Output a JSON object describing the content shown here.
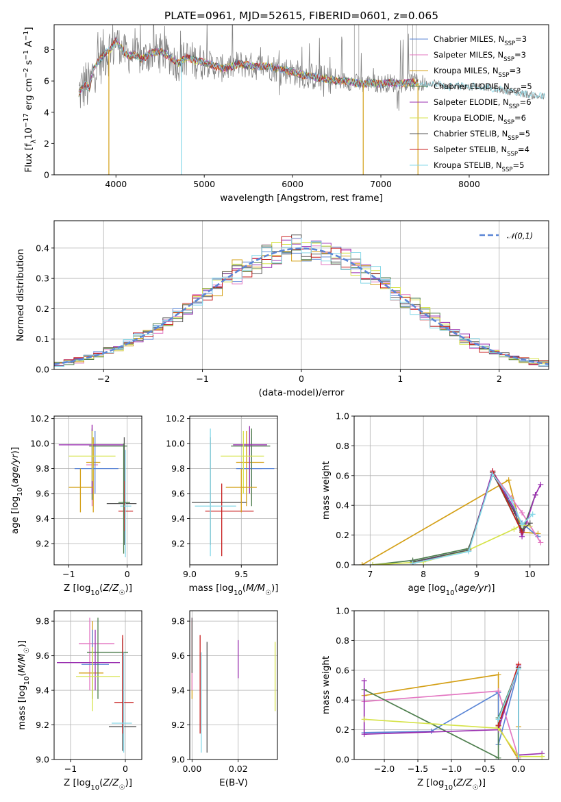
{
  "colors": [
    "#5b86d6",
    "#e377c2",
    "#d4a017",
    "#4f7f4f",
    "#9a2fb0",
    "#d6e34a",
    "#555555",
    "#c81e1e",
    "#87d8e8"
  ],
  "title": "PLATE=0961, MJD=52615, FIBERID=0601, z=0.065",
  "chart_data": [
    {
      "id": "spectrum",
      "type": "line",
      "title": "PLATE=0961, MJD=52615, FIBERID=0601, z=0.065",
      "xlabel": "wavelength [Angstrom, rest frame]",
      "ylabel": "Flux [f_λ 10^-17 erg cm^-2 s^-1 A^-1]",
      "xlim": [
        3300,
        8900
      ],
      "ylim": [
        0,
        9.6
      ],
      "xticks": [
        "4000",
        "5000",
        "6000",
        "7000",
        "8000"
      ],
      "yticks": [
        "0",
        "2",
        "4",
        "6",
        "8"
      ],
      "legend": [
        "Chabrier MILES, N_SSP=3",
        "Salpeter MILES, N_SSP=3",
        "Kroupa MILES, N_SSP=3",
        "Chabrier ELODIE, N_SSP=5",
        "Salpeter ELODIE, N_SSP=6",
        "Kroupa ELODIE, N_SSP=6",
        "Chabrier STELIB, N_SSP=5",
        "Salpeter STELIB, N_SSP=4",
        "Kroupa STELIB, N_SSP=5"
      ],
      "legend_position": "right",
      "continuum": {
        "x": [
          3580,
          3600,
          3650,
          3700,
          3750,
          3800,
          3850,
          3900,
          3950,
          4000,
          4050,
          4100,
          4150,
          4200,
          4300,
          4400,
          4500,
          4600,
          4700,
          4800,
          4900,
          5000,
          5100,
          5200,
          5300,
          5400,
          5500,
          5600,
          5700,
          5800,
          5900,
          6000,
          6100,
          6200,
          6300,
          6400,
          6500,
          6600,
          6700,
          6800,
          6900,
          7000,
          7100,
          7200,
          7300,
          7400,
          7500,
          7600,
          7700,
          7800,
          7900,
          8000,
          8100,
          8200,
          8300,
          8400,
          8500,
          8600,
          8700,
          8800,
          8850
        ],
        "y": [
          5.2,
          5.4,
          5.8,
          5.5,
          6.8,
          7.2,
          7.6,
          7.9,
          8.1,
          8.6,
          8.2,
          7.8,
          7.6,
          7.7,
          7.4,
          7.8,
          7.9,
          7.6,
          7.1,
          7.5,
          7.3,
          7.2,
          7.0,
          6.8,
          6.9,
          7.1,
          7.0,
          6.9,
          7.0,
          6.8,
          6.7,
          6.6,
          6.4,
          6.3,
          6.2,
          6.1,
          6.0,
          6.0,
          5.9,
          5.8,
          5.9,
          5.8,
          5.9,
          5.8,
          5.9,
          5.9,
          5.8,
          5.9,
          5.7,
          5.6,
          5.7,
          5.6,
          5.7,
          5.6,
          5.5,
          5.4,
          5.3,
          5.2,
          5.1,
          5.0,
          5.0
        ]
      }
    },
    {
      "id": "residuals",
      "type": "histogram",
      "xlabel": "(data-model)/error",
      "ylabel": "Normed distribution",
      "xlim": [
        -2.5,
        2.5
      ],
      "ylim": [
        0,
        0.49
      ],
      "xticks": [
        "−2",
        "−1",
        "0",
        "1",
        "2"
      ],
      "yticks": [
        "0.0",
        "0.1",
        "0.2",
        "0.3",
        "0.4"
      ],
      "legend": [
        "𝒩(0,1)"
      ],
      "legend_position": "top-right",
      "bin_width": 0.1,
      "x_start": -2.5
    },
    {
      "id": "age_vs_Z",
      "type": "errorbar",
      "xlabel": "Z [log10(Z/Z☉)]",
      "ylabel": "age [log10(age/yr)]",
      "xlim": [
        -1.25,
        0.25
      ],
      "ylim": [
        9.03,
        10.22
      ],
      "xticks": [
        "−1",
        "0"
      ],
      "yticks": [
        "9.2",
        "9.4",
        "9.6",
        "9.8",
        "10.0",
        "10.2"
      ],
      "points": [
        {
          "c": 1,
          "x": -0.6,
          "y": 9.83,
          "xe": [
            -0.7,
            -0.5
          ],
          "ye": [
            9.5,
            10.15
          ]
        },
        {
          "c": 2,
          "x": -0.58,
          "y": 9.85,
          "xe": [
            -0.7,
            -0.46
          ],
          "ye": [
            9.45,
            10.05
          ]
        },
        {
          "c": 0,
          "x": -0.55,
          "y": 9.8,
          "xe": [
            -0.9,
            -0.15
          ],
          "ye": [
            9.6,
            10.1
          ]
        },
        {
          "c": 3,
          "x": -0.6,
          "y": 9.98,
          "xe": [
            -0.65,
            -0.0
          ],
          "ye": [
            9.55,
            10.12
          ]
        },
        {
          "c": 4,
          "x": -0.6,
          "y": 9.99,
          "xe": [
            -1.17,
            -0.06
          ],
          "ye": [
            9.6,
            10.15
          ]
        },
        {
          "c": 5,
          "x": -0.6,
          "y": 9.9,
          "xe": [
            -1.0,
            -0.2
          ],
          "ye": [
            9.7,
            10.1
          ]
        },
        {
          "c": 6,
          "x": -0.05,
          "y": 9.52,
          "xe": [
            -0.35,
            0.16
          ],
          "ye": [
            9.19,
            10.05
          ]
        },
        {
          "c": 7,
          "x": -0.05,
          "y": 9.46,
          "xe": [
            -0.15,
            0.1
          ],
          "ye": [
            9.3,
            9.7
          ]
        },
        {
          "c": 8,
          "x": -0.03,
          "y": 9.5,
          "xe": [
            -0.12,
            0.07
          ],
          "ye": [
            9.09,
            9.95
          ]
        },
        {
          "c": 3,
          "x": -0.06,
          "y": 9.53,
          "xe": [
            -0.15,
            0.05
          ],
          "ye": [
            9.12,
            10.0
          ]
        },
        {
          "c": 2,
          "x": -0.8,
          "y": 9.65,
          "xe": [
            -1.0,
            -0.58
          ],
          "ye": [
            9.45,
            9.8
          ]
        }
      ]
    },
    {
      "id": "age_vs_mass",
      "type": "errorbar",
      "xlabel": "mass [log10(M/M☉)]",
      "ylabel": "",
      "xlim": [
        9.0,
        9.85
      ],
      "ylim": [
        9.03,
        10.22
      ],
      "xticks": [
        "9.0",
        "9.5"
      ],
      "yticks": [
        "9.2",
        "9.4",
        "9.6",
        "9.8",
        "10.0",
        "10.2"
      ],
      "points": [
        {
          "c": 1,
          "x": 9.6,
          "y": 9.8,
          "xe": [
            9.5,
            9.7
          ],
          "ye": [
            9.55,
            10.1
          ]
        },
        {
          "c": 2,
          "x": 9.55,
          "y": 9.85,
          "xe": [
            9.45,
            9.72
          ],
          "ye": [
            9.5,
            10.1
          ]
        },
        {
          "c": 0,
          "x": 9.6,
          "y": 9.8,
          "xe": [
            9.45,
            9.82
          ],
          "ye": [
            9.65,
            10.05
          ]
        },
        {
          "c": 3,
          "x": 9.6,
          "y": 9.98,
          "xe": [
            9.4,
            9.78
          ],
          "ye": [
            9.5,
            10.12
          ]
        },
        {
          "c": 4,
          "x": 9.58,
          "y": 9.99,
          "xe": [
            9.42,
            9.75
          ],
          "ye": [
            9.6,
            10.14
          ]
        },
        {
          "c": 5,
          "x": 9.52,
          "y": 9.9,
          "xe": [
            9.3,
            9.72
          ],
          "ye": [
            9.6,
            10.1
          ]
        },
        {
          "c": 6,
          "x": 9.2,
          "y": 9.53,
          "xe": [
            9.02,
            9.55
          ],
          "ye": [
            9.19,
            10.05
          ]
        },
        {
          "c": 7,
          "x": 9.31,
          "y": 9.46,
          "xe": [
            9.15,
            9.62
          ],
          "ye": [
            9.1,
            9.68
          ]
        },
        {
          "c": 8,
          "x": 9.2,
          "y": 9.5,
          "xe": [
            9.05,
            9.45
          ],
          "ye": [
            9.1,
            10.12
          ]
        },
        {
          "c": 2,
          "x": 9.5,
          "y": 9.65,
          "xe": [
            9.35,
            9.65
          ],
          "ye": [
            9.45,
            9.8
          ]
        }
      ]
    },
    {
      "id": "mass_weight_vs_age",
      "type": "line",
      "xlabel": "age [log10(age/yr)]",
      "ylabel": "mass weight",
      "xlim": [
        6.7,
        10.35
      ],
      "ylim": [
        0,
        1.0
      ],
      "xticks": [
        "7",
        "8",
        "9",
        "10"
      ],
      "yticks": [
        "0.0",
        "0.2",
        "0.4",
        "0.6",
        "0.8",
        "1.0"
      ],
      "series": [
        {
          "c": 2,
          "x": [
            6.85,
            9.6,
            9.85,
            10.15
          ],
          "y": [
            0.0,
            0.57,
            0.22,
            0.21
          ]
        },
        {
          "c": 0,
          "x": 7.8,
          "y": 0.0,
          "xs": [
            7.8,
            8.85,
            9.3,
            9.85,
            10.15
          ],
          "ys": [
            0.02,
            0.1,
            0.61,
            0.28,
            0.19
          ]
        },
        {
          "c": 1,
          "x": [
            7.8,
            8.85,
            9.3,
            9.65,
            9.85,
            10.2
          ],
          "y": [
            0.01,
            0.1,
            0.62,
            0.45,
            0.35,
            0.15
          ]
        },
        {
          "c": 3,
          "x": [
            7.05,
            7.8,
            8.85,
            9.3,
            9.85,
            10.1
          ],
          "y": [
            0.0,
            0.03,
            0.11,
            0.62,
            0.22,
            0.47
          ]
        },
        {
          "c": 4,
          "x": [
            7.8,
            8.85,
            9.3,
            9.7,
            9.85,
            10.1,
            10.2
          ],
          "y": [
            0.01,
            0.1,
            0.63,
            0.38,
            0.19,
            0.47,
            0.54
          ]
        },
        {
          "c": 5,
          "x": [
            7.05,
            8.0,
            8.85,
            9.7,
            9.85,
            10.0
          ],
          "y": [
            0.0,
            0.02,
            0.1,
            0.24,
            0.27,
            0.26
          ]
        },
        {
          "c": 6,
          "x": [
            7.8,
            8.85,
            9.3,
            9.7,
            9.85,
            10.0
          ],
          "y": [
            0.02,
            0.1,
            0.61,
            0.36,
            0.23,
            0.28
          ]
        },
        {
          "c": 7,
          "x": [
            9.3,
            9.85
          ],
          "y": [
            0.63,
            0.22
          ]
        },
        {
          "c": 8,
          "x": [
            7.8,
            8.85,
            9.3,
            9.65,
            9.85,
            10.05
          ],
          "y": [
            0.01,
            0.09,
            0.61,
            0.44,
            0.27,
            0.34
          ]
        }
      ]
    },
    {
      "id": "mass_vs_Z",
      "type": "errorbar",
      "xlabel": "Z [log10(Z/Z☉)]",
      "ylabel": "mass [log10(M/M☉)]",
      "xlim": [
        -1.3,
        0.3
      ],
      "ylim": [
        9.0,
        9.86
      ],
      "xticks": [
        "−1",
        "0"
      ],
      "yticks": [
        "9.0",
        "9.2",
        "9.4",
        "9.6",
        "9.8"
      ],
      "points": [
        {
          "c": 1,
          "x": -0.65,
          "y": 9.67,
          "xe": [
            -0.85,
            -0.2
          ],
          "ye": [
            9.4,
            9.82
          ]
        },
        {
          "c": 2,
          "x": -0.6,
          "y": 9.5,
          "xe": [
            -0.85,
            -0.4
          ],
          "ye": [
            9.35,
            9.8
          ]
        },
        {
          "c": 0,
          "x": -0.6,
          "y": 9.55,
          "xe": [
            -0.8,
            -0.3
          ],
          "ye": [
            9.35,
            9.75
          ]
        },
        {
          "c": 3,
          "x": -0.5,
          "y": 9.62,
          "xe": [
            -0.7,
            0.05
          ],
          "ye": [
            9.35,
            9.82
          ]
        },
        {
          "c": 4,
          "x": -0.55,
          "y": 9.56,
          "xe": [
            -1.25,
            -0.1
          ],
          "ye": [
            9.4,
            9.75
          ]
        },
        {
          "c": 5,
          "x": -0.6,
          "y": 9.48,
          "xe": [
            -0.9,
            -0.1
          ],
          "ye": [
            9.28,
            9.65
          ]
        },
        {
          "c": 6,
          "x": -0.05,
          "y": 9.19,
          "xe": [
            -0.3,
            0.2
          ],
          "ye": [
            9.05,
            9.7
          ]
        },
        {
          "c": 7,
          "x": -0.05,
          "y": 9.33,
          "xe": [
            -0.2,
            0.15
          ],
          "ye": [
            9.15,
            9.72
          ]
        },
        {
          "c": 8,
          "x": -0.03,
          "y": 9.21,
          "xe": [
            -0.25,
            0.12
          ],
          "ye": [
            9.04,
            9.62
          ]
        }
      ]
    },
    {
      "id": "mass_vs_EBV",
      "type": "errorbar",
      "xlabel": "E(B-V)",
      "ylabel": "",
      "xlim": [
        -0.001,
        0.037
      ],
      "ylim": [
        9.0,
        9.86
      ],
      "xticks": [
        "0.00",
        "0.02"
      ],
      "yticks": [
        "9.0",
        "9.2",
        "9.4",
        "9.6",
        "9.8"
      ],
      "points": [
        {
          "c": 2,
          "x": 0.0,
          "ye": [
            9.35,
            9.8
          ]
        },
        {
          "c": 1,
          "x": 0.0,
          "ye": [
            9.4,
            9.82
          ]
        },
        {
          "c": 6,
          "x": 0.0,
          "ye": [
            9.5,
            9.82
          ]
        },
        {
          "c": 8,
          "x": 0.004,
          "ye": [
            9.04,
            9.62
          ]
        },
        {
          "c": 7,
          "x": 0.0035,
          "ye": [
            9.15,
            9.72
          ]
        },
        {
          "c": 6,
          "x": 0.0065,
          "ye": [
            9.04,
            9.68
          ]
        },
        {
          "c": 4,
          "x": 0.02,
          "ye": [
            9.47,
            9.69
          ]
        },
        {
          "c": 5,
          "x": 0.036,
          "ye": [
            9.28,
            9.68
          ]
        }
      ]
    },
    {
      "id": "mass_weight_vs_Z",
      "type": "line",
      "xlabel": "Z [log10(Z/Z☉)]",
      "ylabel": "mass weight",
      "xlim": [
        -2.45,
        0.45
      ],
      "ylim": [
        0,
        1.0
      ],
      "xticks": [
        "−2.0",
        "−1.5",
        "−1.0",
        "−0.5",
        "0.0"
      ],
      "yticks": [
        "0.0",
        "0.2",
        "0.4",
        "0.6",
        "0.8",
        "1.0"
      ],
      "series": [
        {
          "c": 2,
          "x": [
            -2.3,
            -0.3,
            -0.3,
            0.0,
            0.0
          ],
          "y": [
            0.43,
            0.57,
            0.22,
            0.0,
            0.22
          ]
        },
        {
          "c": 0,
          "x": [
            -2.3,
            -1.3,
            -0.3,
            -0.3,
            0.0
          ],
          "y": [
            0.18,
            0.19,
            0.45,
            0.1,
            0.61
          ]
        },
        {
          "c": 1,
          "x": [
            -2.3,
            -0.3,
            0.0,
            0.0
          ],
          "y": [
            0.39,
            0.46,
            0.01,
            0.62
          ]
        },
        {
          "c": 3,
          "x": [
            -2.3,
            -0.3,
            -0.3,
            0.0,
            0.0
          ],
          "y": [
            0.47,
            0.01,
            0.28,
            0.62,
            0.02
          ]
        },
        {
          "c": 4,
          "x": [
            -2.3,
            -2.3,
            -0.3,
            0.0,
            0.0,
            0.35
          ],
          "y": [
            0.53,
            0.17,
            0.2,
            0.63,
            0.03,
            0.04
          ]
        },
        {
          "c": 5,
          "x": [
            -2.3,
            -0.3,
            0.0,
            0.35
          ],
          "y": [
            0.27,
            0.21,
            0.02,
            0.02
          ]
        },
        {
          "c": 6,
          "x": [
            -0.3,
            0.0,
            0.0
          ],
          "y": [
            0.23,
            0.62,
            0.0
          ]
        },
        {
          "c": 7,
          "x": [
            -0.3,
            0.0
          ],
          "y": [
            0.23,
            0.64
          ]
        },
        {
          "c": 8,
          "x": [
            -0.3,
            0.0,
            0.0
          ],
          "y": [
            0.27,
            0.61,
            0.0
          ]
        }
      ]
    }
  ]
}
